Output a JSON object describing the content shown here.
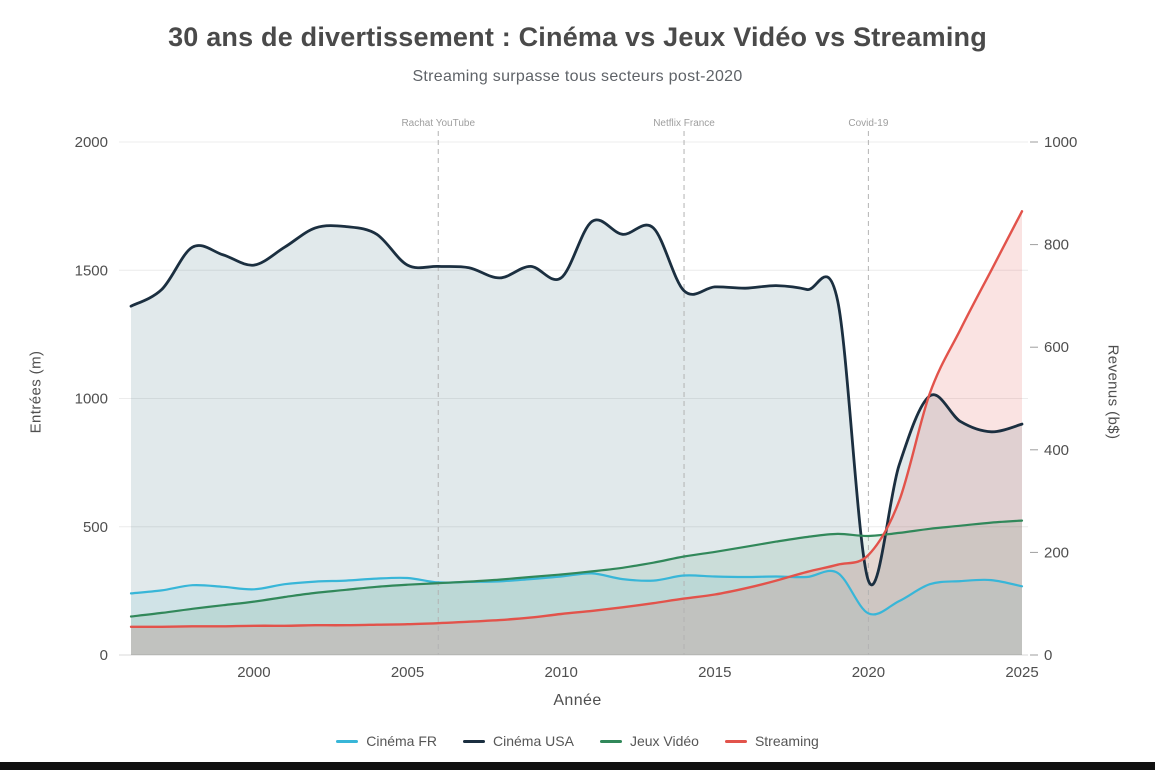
{
  "title": "30 ans de divertissement : Cinéma vs Jeux Vidéo vs Streaming",
  "subtitle": "Streaming surpasse tous secteurs post-2020",
  "chart_data": {
    "type": "line",
    "xlabel": "Année",
    "x_ticks": [
      2000,
      2005,
      2010,
      2015,
      2020,
      2025
    ],
    "x": [
      1996,
      1997,
      1998,
      1999,
      2000,
      2001,
      2002,
      2003,
      2004,
      2005,
      2006,
      2007,
      2008,
      2009,
      2010,
      2011,
      2012,
      2013,
      2014,
      2015,
      2016,
      2017,
      2018,
      2019,
      2020,
      2021,
      2022,
      2023,
      2024,
      2025
    ],
    "y_left": {
      "label": "Entrées (m)",
      "ticks": [
        0,
        500,
        1000,
        1500,
        2000
      ]
    },
    "y_right": {
      "label": "Revenus (b$)",
      "ticks": [
        0,
        200,
        400,
        600,
        800,
        1000
      ]
    },
    "grid": true,
    "legend_position": "bottom",
    "series": [
      {
        "name": "Cinéma FR",
        "axis": "left",
        "color": "#38b6d8",
        "fill": "rgba(56,182,216,0.10)",
        "values": [
          240,
          252,
          272,
          266,
          256,
          276,
          286,
          290,
          298,
          300,
          283,
          285,
          287,
          296,
          306,
          318,
          296,
          290,
          310,
          306,
          304,
          306,
          304,
          320,
          162,
          210,
          276,
          288,
          292,
          268
        ]
      },
      {
        "name": "Cinéma USA",
        "axis": "left",
        "color": "#1b2f40",
        "fill": "rgba(69,118,130,0.16)",
        "values": [
          1360,
          1425,
          1590,
          1560,
          1520,
          1590,
          1665,
          1670,
          1640,
          1520,
          1515,
          1510,
          1470,
          1515,
          1470,
          1690,
          1640,
          1665,
          1420,
          1435,
          1430,
          1440,
          1425,
          1380,
          290,
          740,
          1010,
          910,
          870,
          900
        ]
      },
      {
        "name": "Jeux Vidéo",
        "axis": "right",
        "color": "#31885a",
        "fill": "rgba(49,136,90,0.12)",
        "values": [
          75,
          82,
          90,
          97,
          104,
          113,
          121,
          127,
          133,
          137,
          140,
          143,
          147,
          152,
          157,
          163,
          170,
          180,
          192,
          201,
          211,
          221,
          230,
          236,
          232,
          238,
          246,
          252,
          258,
          262
        ]
      },
      {
        "name": "Streaming",
        "axis": "right",
        "color": "#e2534b",
        "fill": "rgba(226,83,75,0.16)",
        "values": [
          55,
          55,
          56,
          56,
          57,
          57,
          58,
          58,
          59,
          60,
          62,
          65,
          68,
          73,
          80,
          86,
          93,
          101,
          110,
          118,
          130,
          145,
          162,
          176,
          195,
          300,
          510,
          635,
          750,
          865
        ]
      }
    ],
    "annotations": [
      {
        "x": 2006,
        "label": "Rachat YouTube"
      },
      {
        "x": 2014,
        "label": "Netflix France"
      },
      {
        "x": 2020,
        "label": "Covid-19"
      }
    ]
  }
}
